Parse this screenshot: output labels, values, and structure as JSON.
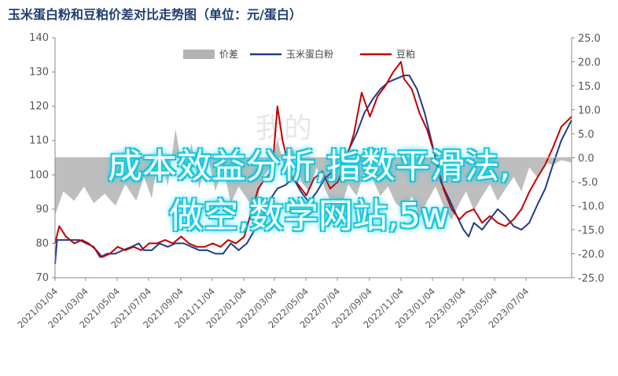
{
  "chart_data": {
    "type": "line",
    "title": "玉米蛋白粉和豆粕价差对比走势图（单位：元/蛋白）",
    "left_axis": {
      "ylim": [
        70,
        140
      ],
      "ticks": [
        70,
        80,
        90,
        100,
        110,
        120,
        130,
        140
      ]
    },
    "right_axis": {
      "ylim": [
        -25,
        25
      ],
      "ticks": [
        "-25.0",
        "-20.0",
        "-15.0",
        "-10.0",
        "-5.0",
        "0.0",
        "5.0",
        "10.0",
        "15.0",
        "20.0",
        "25.0"
      ]
    },
    "x_start": "2021/01/04",
    "x_end": "2023/09/30",
    "x_ticks": [
      "2021/01/04",
      "2021/03/04",
      "2021/05/04",
      "2021/07/04",
      "2021/09/04",
      "2021/11/04",
      "2022/01/04",
      "2022/03/04",
      "2022/05/04",
      "2022/07/04",
      "2022/09/04",
      "2022/11/04",
      "2023/01/04",
      "2023/03/04",
      "2023/05/04",
      "2023/07/04"
    ],
    "legend_placement": "top-center",
    "series": [
      {
        "name": "价差",
        "axis": "right",
        "kind": "area",
        "color": "#b3b3b3",
        "points": [
          [
            "2021/01/04",
            -12.0
          ],
          [
            "2021/01/20",
            -7.0
          ],
          [
            "2021/02/10",
            -9.0
          ],
          [
            "2021/03/01",
            -6.0
          ],
          [
            "2021/03/20",
            -9.5
          ],
          [
            "2021/04/10",
            -7.5
          ],
          [
            "2021/05/01",
            -10.0
          ],
          [
            "2021/05/20",
            -5.5
          ],
          [
            "2021/06/10",
            -9.0
          ],
          [
            "2021/06/25",
            -4.0
          ],
          [
            "2021/07/10",
            -8.5
          ],
          [
            "2021/07/25",
            2.0
          ],
          [
            "2021/08/10",
            -6.0
          ],
          [
            "2021/08/25",
            6.0
          ],
          [
            "2021/09/10",
            -4.0
          ],
          [
            "2021/09/25",
            3.0
          ],
          [
            "2021/10/10",
            -6.5
          ],
          [
            "2021/10/25",
            1.0
          ],
          [
            "2021/11/10",
            -7.0
          ],
          [
            "2021/11/25",
            -2.0
          ],
          [
            "2021/12/10",
            -9.5
          ],
          [
            "2021/12/25",
            -6.0
          ],
          [
            "2022/01/10",
            -8.5
          ],
          [
            "2022/01/25",
            -11.5
          ],
          [
            "2022/02/10",
            -4.0
          ],
          [
            "2022/02/25",
            -2.0
          ],
          [
            "2022/03/10",
            4.0
          ],
          [
            "2022/03/25",
            -3.0
          ],
          [
            "2022/04/10",
            2.0
          ],
          [
            "2022/04/25",
            -5.0
          ],
          [
            "2022/05/10",
            -7.0
          ],
          [
            "2022/05/25",
            -2.0
          ],
          [
            "2022/06/10",
            -6.5
          ],
          [
            "2022/06/25",
            -10.0
          ],
          [
            "2022/07/10",
            -11.0
          ],
          [
            "2022/07/25",
            -5.5
          ],
          [
            "2022/08/10",
            -8.0
          ],
          [
            "2022/08/25",
            -3.0
          ],
          [
            "2022/09/10",
            -4.5
          ],
          [
            "2022/09/25",
            -8.0
          ],
          [
            "2022/10/10",
            -6.0
          ],
          [
            "2022/10/25",
            -9.5
          ],
          [
            "2022/11/10",
            -11.0
          ],
          [
            "2022/11/25",
            -8.0
          ],
          [
            "2022/12/10",
            -12.5
          ],
          [
            "2022/12/25",
            -9.0
          ],
          [
            "2023/01/10",
            -6.0
          ],
          [
            "2023/01/25",
            -10.0
          ],
          [
            "2023/02/10",
            -13.0
          ],
          [
            "2023/02/25",
            -9.5
          ],
          [
            "2023/03/10",
            -7.0
          ],
          [
            "2023/03/25",
            -11.0
          ],
          [
            "2023/04/10",
            -8.0
          ],
          [
            "2023/04/25",
            -5.5
          ],
          [
            "2023/05/10",
            -9.0
          ],
          [
            "2023/05/25",
            -6.5
          ],
          [
            "2023/06/10",
            -4.0
          ],
          [
            "2023/06/25",
            -7.0
          ],
          [
            "2023/07/10",
            -2.0
          ],
          [
            "2023/07/25",
            -4.0
          ],
          [
            "2023/08/10",
            -1.0
          ],
          [
            "2023/08/25",
            -1.5
          ],
          [
            "2023/09/10",
            -0.5
          ],
          [
            "2023/09/30",
            -1.0
          ]
        ]
      },
      {
        "name": "玉米蛋白粉",
        "axis": "left",
        "kind": "line",
        "color": "#1f3c88",
        "points": [
          [
            "2021/01/04",
            74
          ],
          [
            "2021/01/08",
            81
          ],
          [
            "2021/01/20",
            81
          ],
          [
            "2021/02/20",
            81
          ],
          [
            "2021/03/05",
            80
          ],
          [
            "2021/03/20",
            79
          ],
          [
            "2021/04/01",
            76
          ],
          [
            "2021/04/15",
            77
          ],
          [
            "2021/05/01",
            77
          ],
          [
            "2021/05/15",
            78
          ],
          [
            "2021/06/01",
            79
          ],
          [
            "2021/06/15",
            80
          ],
          [
            "2021/06/25",
            78
          ],
          [
            "2021/07/10",
            78
          ],
          [
            "2021/07/25",
            80
          ],
          [
            "2021/08/10",
            79
          ],
          [
            "2021/08/25",
            80
          ],
          [
            "2021/09/10",
            80
          ],
          [
            "2021/09/25",
            79
          ],
          [
            "2021/10/10",
            78
          ],
          [
            "2021/10/25",
            78
          ],
          [
            "2021/11/10",
            77
          ],
          [
            "2021/11/25",
            77
          ],
          [
            "2021/12/10",
            80
          ],
          [
            "2021/12/25",
            78
          ],
          [
            "2022/01/10",
            80
          ],
          [
            "2022/01/25",
            84
          ],
          [
            "2022/02/10",
            88
          ],
          [
            "2022/02/25",
            93
          ],
          [
            "2022/03/10",
            96
          ],
          [
            "2022/03/25",
            97
          ],
          [
            "2022/04/10",
            99
          ],
          [
            "2022/04/25",
            95
          ],
          [
            "2022/05/10",
            92
          ],
          [
            "2022/05/25",
            95
          ],
          [
            "2022/06/10",
            99
          ],
          [
            "2022/06/25",
            101
          ],
          [
            "2022/07/10",
            103
          ],
          [
            "2022/07/25",
            107
          ],
          [
            "2022/08/10",
            112
          ],
          [
            "2022/08/25",
            118
          ],
          [
            "2022/09/10",
            122
          ],
          [
            "2022/09/25",
            125
          ],
          [
            "2022/10/10",
            127
          ],
          [
            "2022/10/25",
            128
          ],
          [
            "2022/11/10",
            129
          ],
          [
            "2022/11/20",
            129
          ],
          [
            "2022/12/05",
            125
          ],
          [
            "2022/12/20",
            118
          ],
          [
            "2023/01/05",
            108
          ],
          [
            "2023/01/20",
            98
          ],
          [
            "2023/02/05",
            93
          ],
          [
            "2023/02/20",
            88
          ],
          [
            "2023/03/05",
            84
          ],
          [
            "2023/03/15",
            82
          ],
          [
            "2023/03/25",
            86
          ],
          [
            "2023/04/10",
            84
          ],
          [
            "2023/04/25",
            87
          ],
          [
            "2023/05/10",
            90
          ],
          [
            "2023/05/25",
            88
          ],
          [
            "2023/06/10",
            85
          ],
          [
            "2023/06/25",
            84
          ],
          [
            "2023/07/10",
            86
          ],
          [
            "2023/07/25",
            91
          ],
          [
            "2023/08/10",
            96
          ],
          [
            "2023/08/25",
            103
          ],
          [
            "2023/09/10",
            110
          ],
          [
            "2023/09/30",
            116
          ]
        ]
      },
      {
        "name": "豆粕",
        "axis": "left",
        "kind": "line",
        "color": "#c00000",
        "points": [
          [
            "2021/01/04",
            80
          ],
          [
            "2021/01/12",
            85
          ],
          [
            "2021/01/25",
            82
          ],
          [
            "2021/02/10",
            80
          ],
          [
            "2021/02/25",
            81
          ],
          [
            "2021/03/10",
            80
          ],
          [
            "2021/03/25",
            78
          ],
          [
            "2021/04/05",
            76
          ],
          [
            "2021/04/20",
            77
          ],
          [
            "2021/05/05",
            79
          ],
          [
            "2021/05/20",
            78
          ],
          [
            "2021/06/05",
            79
          ],
          [
            "2021/06/20",
            78
          ],
          [
            "2021/07/05",
            80
          ],
          [
            "2021/07/20",
            80
          ],
          [
            "2021/08/05",
            81
          ],
          [
            "2021/08/20",
            80
          ],
          [
            "2021/09/05",
            82
          ],
          [
            "2021/09/20",
            80
          ],
          [
            "2021/10/05",
            79
          ],
          [
            "2021/10/20",
            79
          ],
          [
            "2021/11/05",
            80
          ],
          [
            "2021/11/20",
            79
          ],
          [
            "2021/12/05",
            81
          ],
          [
            "2021/12/20",
            80
          ],
          [
            "2022/01/05",
            82
          ],
          [
            "2022/01/20",
            90
          ],
          [
            "2022/02/01",
            96
          ],
          [
            "2022/02/15",
            99
          ],
          [
            "2022/02/28",
            101
          ],
          [
            "2022/03/10",
            120
          ],
          [
            "2022/03/20",
            110
          ],
          [
            "2022/04/05",
            100
          ],
          [
            "2022/04/20",
            97
          ],
          [
            "2022/05/05",
            94
          ],
          [
            "2022/05/20",
            99
          ],
          [
            "2022/06/05",
            101
          ],
          [
            "2022/06/20",
            96
          ],
          [
            "2022/07/05",
            98
          ],
          [
            "2022/07/20",
            104
          ],
          [
            "2022/08/05",
            112
          ],
          [
            "2022/08/20",
            124
          ],
          [
            "2022/09/05",
            117
          ],
          [
            "2022/09/20",
            123
          ],
          [
            "2022/10/05",
            126
          ],
          [
            "2022/10/20",
            130
          ],
          [
            "2022/11/04",
            133
          ],
          [
            "2022/11/10",
            128
          ],
          [
            "2022/11/25",
            125
          ],
          [
            "2022/12/10",
            118
          ],
          [
            "2022/12/25",
            113
          ],
          [
            "2023/01/10",
            105
          ],
          [
            "2023/01/25",
            96
          ],
          [
            "2023/02/10",
            90
          ],
          [
            "2023/02/25",
            87
          ],
          [
            "2023/03/10",
            89
          ],
          [
            "2023/03/25",
            90
          ],
          [
            "2023/04/10",
            86
          ],
          [
            "2023/04/25",
            88
          ],
          [
            "2023/05/10",
            86
          ],
          [
            "2023/05/25",
            85
          ],
          [
            "2023/06/10",
            87
          ],
          [
            "2023/06/25",
            90
          ],
          [
            "2023/07/10",
            95
          ],
          [
            "2023/07/25",
            99
          ],
          [
            "2023/08/10",
            103
          ],
          [
            "2023/08/25",
            108
          ],
          [
            "2023/09/10",
            114
          ],
          [
            "2023/09/30",
            117
          ]
        ]
      }
    ]
  },
  "watermark": "我的",
  "overlay": {
    "line1": "成本效益分析,指数平滑法,",
    "line2": "做空,数学网站,5w"
  }
}
